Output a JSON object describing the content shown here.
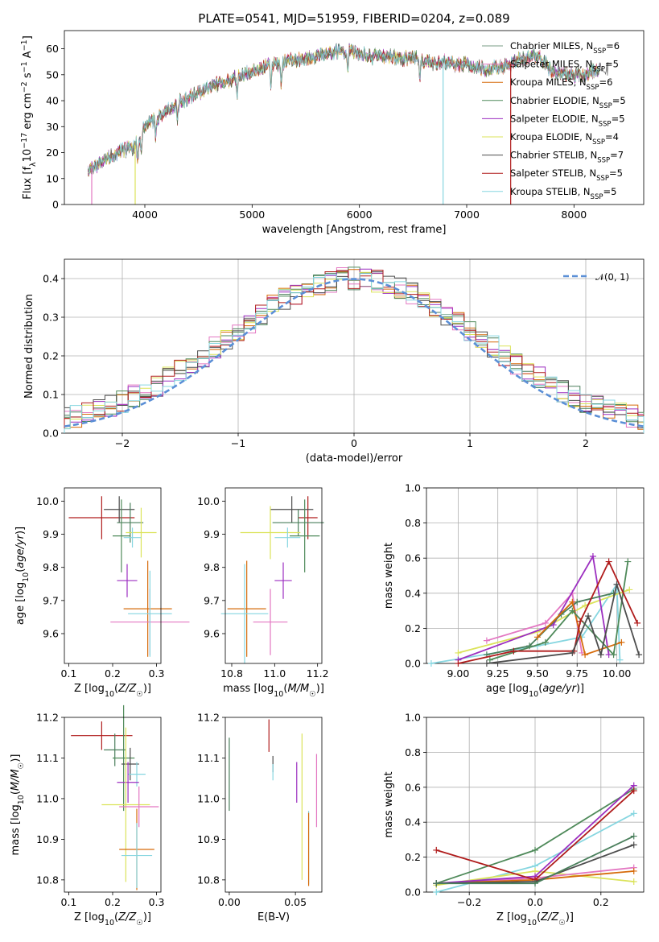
{
  "figure": {
    "title": "PLATE=0541, MJD=51959, FIBERID=0204, z=0.089"
  },
  "models": [
    {
      "name": "Chabrier MILES",
      "nssp": "6",
      "color": "#4a7f5c",
      "legend_color": "#7a9e86"
    },
    {
      "name": "Salpeter MILES",
      "nssp": "5",
      "color": "#e377c2",
      "legend_color": "#e377c2"
    },
    {
      "name": "Kroupa MILES",
      "nssp": "6",
      "color": "#d66b0b",
      "legend_color": "#d66b0b"
    },
    {
      "name": "Chabrier ELODIE",
      "nssp": "5",
      "color": "#4f8a5a",
      "legend_color": "#4f8a5a"
    },
    {
      "name": "Salpeter ELODIE",
      "nssp": "5",
      "color": "#9c2fc0",
      "legend_color": "#9c2fc0"
    },
    {
      "name": "Kroupa ELODIE",
      "nssp": "4",
      "color": "#dbe35a",
      "legend_color": "#dbe35a"
    },
    {
      "name": "Chabrier STELIB",
      "nssp": "7",
      "color": "#4d4d4d",
      "legend_color": "#4d4d4d"
    },
    {
      "name": "Salpeter STELIB",
      "nssp": "5",
      "color": "#b01c1c",
      "legend_color": "#b01c1c"
    },
    {
      "name": "Kroupa STELIB",
      "nssp": "5",
      "color": "#86d6e0",
      "legend_color": "#86d6e0"
    }
  ],
  "chart_data": [
    {
      "id": "spectrum",
      "type": "line",
      "xlabel": "wavelength [Angstrom, rest frame]",
      "ylabel": "Flux [f",
      "xlim": [
        3250,
        8650
      ],
      "ylim": [
        0,
        67
      ],
      "xticks": [
        4000,
        5000,
        6000,
        7000,
        8000
      ],
      "yticks": [
        0,
        10,
        20,
        30,
        40,
        50,
        60
      ],
      "grid": false,
      "legend_position": "upper-right",
      "continuum": {
        "x": [
          3470,
          3550,
          3650,
          3700,
          3800,
          3900,
          3950,
          4000,
          4100,
          4200,
          4300,
          4400,
          4500,
          4600,
          4700,
          4800,
          4900,
          5000,
          5100,
          5200,
          5300,
          5400,
          5500,
          5600,
          5700,
          5800,
          5900,
          6000,
          6100,
          6200,
          6300,
          6400,
          6500,
          6600,
          6700,
          6800,
          6900,
          7000,
          7100,
          7200,
          7300,
          7400,
          7500,
          7600,
          7700,
          7800,
          7900,
          8000,
          8100,
          8200,
          8240
        ],
        "y": [
          13,
          15,
          18,
          19,
          21,
          22,
          26,
          30,
          33,
          36,
          39,
          41,
          43,
          45,
          47,
          48,
          50,
          51,
          53,
          54,
          55,
          56,
          56,
          57,
          58,
          59,
          59,
          58,
          57,
          57,
          57,
          56,
          57,
          55,
          54,
          55,
          54,
          54,
          53,
          52,
          53,
          54,
          56,
          57,
          56,
          51,
          50,
          50,
          50,
          52,
          52
        ]
      },
      "dropouts": [
        {
          "model": 1,
          "x": 3505,
          "y": 0
        },
        {
          "model": 5,
          "x": 3910,
          "y": 0
        },
        {
          "model": 8,
          "x": 6780,
          "y": 0
        },
        {
          "model": 7,
          "x": 7410,
          "y": 0
        }
      ]
    },
    {
      "id": "residuals",
      "type": "histogram",
      "xlabel": "(data-model)/error",
      "ylabel": "Normed distribution",
      "xlim": [
        -2.5,
        2.5
      ],
      "ylim": [
        0,
        0.45
      ],
      "xticks": [
        -2,
        -1,
        0,
        1,
        2
      ],
      "yticks": [
        0.0,
        0.1,
        0.2,
        0.3,
        0.4
      ],
      "grid": true,
      "legend": [
        "𝒩(0, 1)"
      ],
      "legend_position": "upper-right",
      "bin_width": 0.1,
      "normal": {
        "mean": 0,
        "sigma": 1,
        "color": "#5b8fd6"
      }
    },
    {
      "id": "age-vs-z",
      "type": "errorbar",
      "xlabel": "Z [log10(Z/Z☉)]",
      "ylabel": "age  [log10(age/yr)]",
      "xlim": [
        0.09,
        0.31
      ],
      "ylim": [
        9.51,
        10.04
      ],
      "xticks": [
        0.1,
        0.2,
        0.3
      ],
      "yticks": [
        9.6,
        9.7,
        9.8,
        9.9,
        10.0
      ],
      "points": [
        {
          "model": 7,
          "x": 0.175,
          "xerr": 0.075,
          "y": 9.95,
          "yerr": 0.065
        },
        {
          "model": 6,
          "x": 0.215,
          "xerr": 0.035,
          "y": 9.975,
          "yerr": 0.04
        },
        {
          "model": 0,
          "x": 0.24,
          "xerr": 0.03,
          "y": 9.935,
          "yerr": 0.06
        },
        {
          "model": 3,
          "x": 0.22,
          "xerr": 0.02,
          "y": 9.895,
          "yerr": 0.11
        },
        {
          "model": 5,
          "x": 0.265,
          "xerr": 0.035,
          "y": 9.905,
          "yerr": 0.075
        },
        {
          "model": 8,
          "x": 0.245,
          "xerr": 0.02,
          "y": 9.89,
          "yerr": 0.03
        },
        {
          "model": 4,
          "x": 0.233,
          "xerr": 0.023,
          "y": 9.76,
          "yerr": 0.05
        },
        {
          "model": 2,
          "x": 0.28,
          "xerr": 0.055,
          "y": 9.675,
          "yerr": 0.145
        },
        {
          "model": 1,
          "x": 0.285,
          "xerr": 0.09,
          "y": 9.635,
          "yerr": 0.1
        },
        {
          "model": 8,
          "x": 0.285,
          "xerr": 0.05,
          "y": 9.66,
          "yerr": 0.13
        }
      ]
    },
    {
      "id": "age-vs-mass",
      "type": "errorbar",
      "xlabel": "mass [log10(M/M☉)]",
      "ylabel": "",
      "xlim": [
        10.77,
        11.22
      ],
      "ylim": [
        9.51,
        10.04
      ],
      "xticks": [
        10.8,
        11.0,
        11.2
      ],
      "yticks": [
        9.6,
        9.7,
        9.8,
        9.9,
        10.0
      ],
      "points": [
        {
          "model": 7,
          "x": 11.155,
          "xerr": 0.045,
          "y": 9.95,
          "yerr": 0.065
        },
        {
          "model": 6,
          "x": 11.08,
          "xerr": 0.1,
          "y": 9.975,
          "yerr": 0.04
        },
        {
          "model": 0,
          "x": 11.11,
          "xerr": 0.12,
          "y": 9.935,
          "yerr": 0.04
        },
        {
          "model": 3,
          "x": 11.14,
          "xerr": 0.07,
          "y": 9.895,
          "yerr": 0.11
        },
        {
          "model": 5,
          "x": 10.98,
          "xerr": 0.14,
          "y": 9.905,
          "yerr": 0.08
        },
        {
          "model": 8,
          "x": 11.06,
          "xerr": 0.06,
          "y": 9.89,
          "yerr": 0.03
        },
        {
          "model": 4,
          "x": 11.04,
          "xerr": 0.04,
          "y": 9.76,
          "yerr": 0.055
        },
        {
          "model": 2,
          "x": 10.87,
          "xerr": 0.09,
          "y": 9.675,
          "yerr": 0.145
        },
        {
          "model": 1,
          "x": 10.98,
          "xerr": 0.08,
          "y": 9.635,
          "yerr": 0.1
        },
        {
          "model": 8,
          "x": 10.86,
          "xerr": 0.11,
          "y": 9.66,
          "yerr": 0.15
        }
      ]
    },
    {
      "id": "weights-vs-age",
      "type": "line",
      "xlabel": "age  [log10(age/yr)]",
      "ylabel": "mass weight",
      "xlim": [
        8.8,
        10.17
      ],
      "ylim": [
        0,
        1
      ],
      "xticks": [
        9.0,
        9.25,
        9.5,
        9.75,
        10.0
      ],
      "yticks": [
        0.0,
        0.2,
        0.4,
        0.6,
        0.8,
        1.0
      ],
      "grid": true,
      "series": [
        {
          "model": 8,
          "x": [
            8.83,
            9.5,
            9.78,
            10.0,
            10.02
          ],
          "y": [
            0.0,
            0.1,
            0.15,
            0.45,
            0.02
          ]
        },
        {
          "model": 5,
          "x": [
            9.0,
            9.5,
            9.8,
            10.08
          ],
          "y": [
            0.06,
            0.18,
            0.33,
            0.42
          ]
        },
        {
          "model": 1,
          "x": [
            9.18,
            9.55,
            9.72,
            9.78
          ],
          "y": [
            0.13,
            0.23,
            0.4,
            0.06
          ]
        },
        {
          "model": 4,
          "x": [
            9.0,
            9.6,
            9.85,
            9.95
          ],
          "y": [
            0.02,
            0.22,
            0.61,
            0.05
          ]
        },
        {
          "model": 0,
          "x": [
            9.18,
            9.45,
            9.65,
            9.75,
            9.98
          ],
          "y": [
            0.05,
            0.1,
            0.28,
            0.35,
            0.4
          ]
        },
        {
          "model": 2,
          "x": [
            9.5,
            9.72,
            9.8,
            10.03
          ],
          "y": [
            0.15,
            0.35,
            0.05,
            0.12
          ]
        },
        {
          "model": 3,
          "x": [
            9.2,
            9.55,
            9.72,
            9.98,
            10.07
          ],
          "y": [
            0.02,
            0.12,
            0.3,
            0.05,
            0.58
          ]
        },
        {
          "model": 7,
          "x": [
            9.0,
            9.35,
            9.73,
            9.77,
            9.95,
            10.13
          ],
          "y": [
            0.0,
            0.07,
            0.07,
            0.24,
            0.58,
            0.23
          ]
        },
        {
          "model": 6,
          "x": [
            9.18,
            9.72,
            9.82,
            9.9,
            10.0,
            10.14
          ],
          "y": [
            0.0,
            0.06,
            0.27,
            0.05,
            0.45,
            0.05
          ]
        }
      ]
    },
    {
      "id": "mass-vs-z",
      "type": "errorbar",
      "xlabel": "Z [log10(Z/Z☉)]",
      "ylabel": "mass [log10(M/M☉)]",
      "xlim": [
        0.09,
        0.31
      ],
      "ylim": [
        10.77,
        11.2
      ],
      "xticks": [
        0.1,
        0.2,
        0.3
      ],
      "yticks": [
        10.8,
        10.9,
        11.0,
        11.1,
        11.2
      ],
      "points": [
        {
          "model": 7,
          "x": 0.175,
          "xerr": 0.07,
          "y": 11.155,
          "yerr": 0.035
        },
        {
          "model": 0,
          "x": 0.205,
          "xerr": 0.025,
          "y": 11.12,
          "yerr": 0.04
        },
        {
          "model": 3,
          "x": 0.225,
          "xerr": 0.025,
          "y": 11.1,
          "yerr": 0.13
        },
        {
          "model": 6,
          "x": 0.24,
          "xerr": 0.02,
          "y": 11.085,
          "yerr": 0.04
        },
        {
          "model": 8,
          "x": 0.255,
          "xerr": 0.02,
          "y": 11.06,
          "yerr": 0.03
        },
        {
          "model": 4,
          "x": 0.235,
          "xerr": 0.025,
          "y": 11.04,
          "yerr": 0.05
        },
        {
          "model": 5,
          "x": 0.23,
          "xerr": 0.055,
          "y": 10.985,
          "yerr": 0.19
        },
        {
          "model": 1,
          "x": 0.26,
          "xerr": 0.045,
          "y": 10.98,
          "yerr": 0.05
        },
        {
          "model": 2,
          "x": 0.255,
          "xerr": 0.04,
          "y": 10.875,
          "yerr": 0.1
        },
        {
          "model": 8,
          "x": 0.255,
          "xerr": 0.035,
          "y": 10.86,
          "yerr": 0.08
        }
      ]
    },
    {
      "id": "mass-vs-ebv",
      "type": "errorbar",
      "xlabel": "E(B-V)",
      "ylabel": "",
      "xlim": [
        -0.003,
        0.07
      ],
      "ylim": [
        10.77,
        11.2
      ],
      "xticks": [
        0.0,
        0.05
      ],
      "yticks": [
        10.8,
        10.9,
        11.0,
        11.1,
        11.2
      ],
      "points": [
        {
          "model": 0,
          "x": 0.0,
          "y": 11.06,
          "yerr": 0.09
        },
        {
          "model": 7,
          "x": 0.03,
          "y": 11.155,
          "yerr": 0.04
        },
        {
          "model": 6,
          "x": 0.033,
          "y": 11.085,
          "yerr": 0.02
        },
        {
          "model": 8,
          "x": 0.033,
          "y": 11.065,
          "yerr": 0.02
        },
        {
          "model": 4,
          "x": 0.051,
          "y": 11.04,
          "yerr": 0.05
        },
        {
          "model": 5,
          "x": 0.055,
          "y": 10.98,
          "yerr": 0.18
        },
        {
          "model": 8,
          "x": 0.06,
          "y": 10.88,
          "yerr": 0.09
        },
        {
          "model": 2,
          "x": 0.06,
          "y": 10.875,
          "yerr": 0.09
        },
        {
          "model": 1,
          "x": 0.066,
          "y": 11.02,
          "yerr": 0.09
        }
      ]
    },
    {
      "id": "weights-vs-z",
      "type": "line",
      "xlabel": "Z [log10(Z/Z☉)]",
      "ylabel": "mass weight",
      "xlim": [
        -0.33,
        0.33
      ],
      "ylim": [
        0,
        1
      ],
      "xticks": [
        -0.2,
        0.0,
        0.2
      ],
      "yticks": [
        0.0,
        0.2,
        0.4,
        0.6,
        0.8,
        1.0
      ],
      "grid": true,
      "series": [
        {
          "model": 8,
          "x": [
            -0.3,
            0.0,
            0.3
          ],
          "y": [
            0.0,
            0.15,
            0.45
          ]
        },
        {
          "model": 5,
          "x": [
            -0.3,
            0.0,
            0.3
          ],
          "y": [
            0.04,
            0.12,
            0.06
          ]
        },
        {
          "model": 1,
          "x": [
            -0.3,
            0.0,
            0.3
          ],
          "y": [
            0.05,
            0.08,
            0.14
          ]
        },
        {
          "model": 2,
          "x": [
            -0.3,
            0.0,
            0.3
          ],
          "y": [
            0.05,
            0.07,
            0.12
          ]
        },
        {
          "model": 3,
          "x": [
            -0.3,
            0.0,
            0.3
          ],
          "y": [
            0.05,
            0.24,
            0.59
          ]
        },
        {
          "model": 4,
          "x": [
            -0.3,
            0.0,
            0.3
          ],
          "y": [
            0.05,
            0.09,
            0.61
          ]
        },
        {
          "model": 6,
          "x": [
            -0.3,
            0.0,
            0.3
          ],
          "y": [
            0.05,
            0.06,
            0.27
          ]
        },
        {
          "model": 7,
          "x": [
            -0.3,
            0.0,
            0.3
          ],
          "y": [
            0.24,
            0.07,
            0.58
          ]
        },
        {
          "model": 0,
          "x": [
            -0.3,
            0.0,
            0.3
          ],
          "y": [
            0.05,
            0.05,
            0.32
          ]
        }
      ]
    }
  ]
}
